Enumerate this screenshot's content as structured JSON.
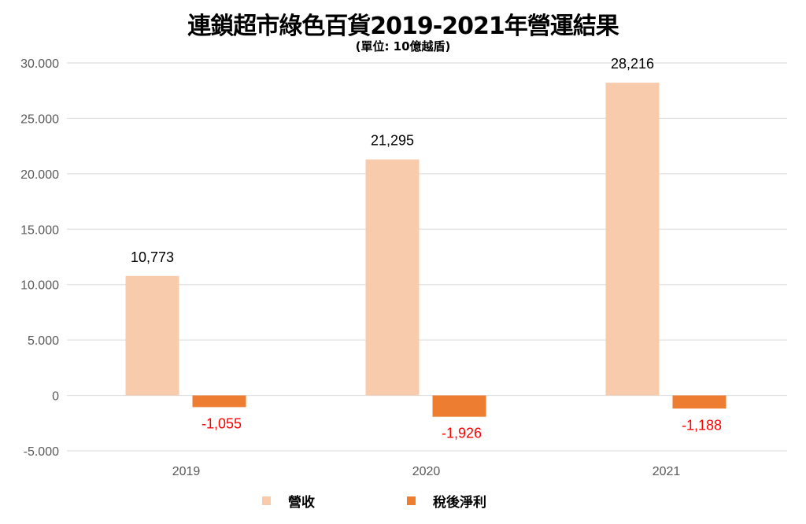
{
  "chart_data": {
    "type": "bar",
    "title": "連鎖超市綠色百貨2019-2021年營運結果",
    "subtitle": "(單位: 10億越盾)",
    "categories": [
      "2019",
      "2020",
      "2021"
    ],
    "series": [
      {
        "name": "營收",
        "values": [
          10773,
          21295,
          28216
        ],
        "labels": [
          "10,773",
          "21,295",
          "28,216"
        ],
        "color": "#F8CBAD",
        "label_color": "#000000"
      },
      {
        "name": "稅後淨利",
        "values": [
          -1055,
          -1926,
          -1188
        ],
        "labels": [
          "-1,055",
          "-1,926",
          "-1,188"
        ],
        "color": "#ED7D31",
        "label_color": "#FF0000"
      }
    ],
    "ylim": [
      -5000,
      30000
    ],
    "yticks": [
      30000,
      25000,
      20000,
      15000,
      10000,
      5000,
      0,
      -5000
    ],
    "ytick_labels": [
      "30.000",
      "25.000",
      "20.000",
      "15.000",
      "10.000",
      "5.000",
      "0",
      "-5.000"
    ],
    "grid": true,
    "legend_position": "bottom",
    "xlabel": "",
    "ylabel": ""
  }
}
